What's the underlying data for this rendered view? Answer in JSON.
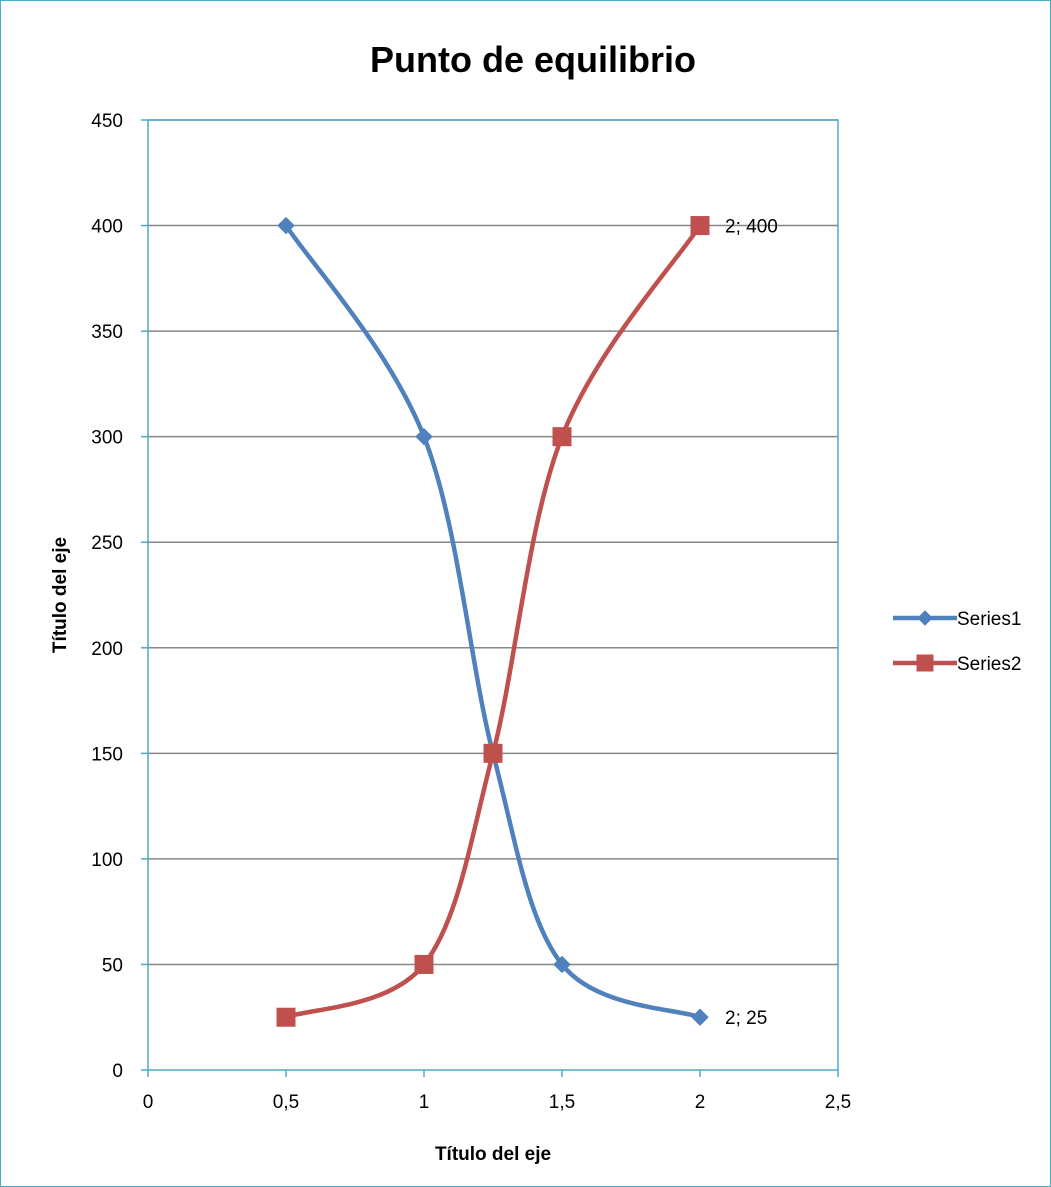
{
  "chart_data": {
    "type": "scatter",
    "title": "Punto de equilibrio",
    "xlabel": "Título del eje",
    "ylabel": "Título del eje",
    "xlim": [
      0,
      2.5
    ],
    "ylim": [
      0,
      450
    ],
    "x_ticks": [
      "0",
      "0,5",
      "1",
      "1,5",
      "2",
      "2,5"
    ],
    "y_ticks": [
      "0",
      "50",
      "100",
      "150",
      "200",
      "250",
      "300",
      "350",
      "400",
      "450"
    ],
    "grid": "horizontal major gridlines",
    "smoothed_lines": true,
    "legend_position": "right",
    "series": [
      {
        "name": "Series1",
        "color": "#4F81BD",
        "marker": "diamond",
        "points": [
          [
            0.5,
            400
          ],
          [
            1,
            300
          ],
          [
            1.25,
            150
          ],
          [
            1.5,
            50
          ],
          [
            2,
            25
          ]
        ],
        "data_label": {
          "x": 2,
          "y": 25,
          "text": "2; 25"
        }
      },
      {
        "name": "Series2",
        "color": "#C0504D",
        "marker": "square",
        "points": [
          [
            0.5,
            25
          ],
          [
            1,
            50
          ],
          [
            1.25,
            150
          ],
          [
            1.5,
            300
          ],
          [
            2,
            400
          ]
        ],
        "data_label": {
          "x": 2,
          "y": 400,
          "text": "2; 400"
        }
      }
    ]
  }
}
